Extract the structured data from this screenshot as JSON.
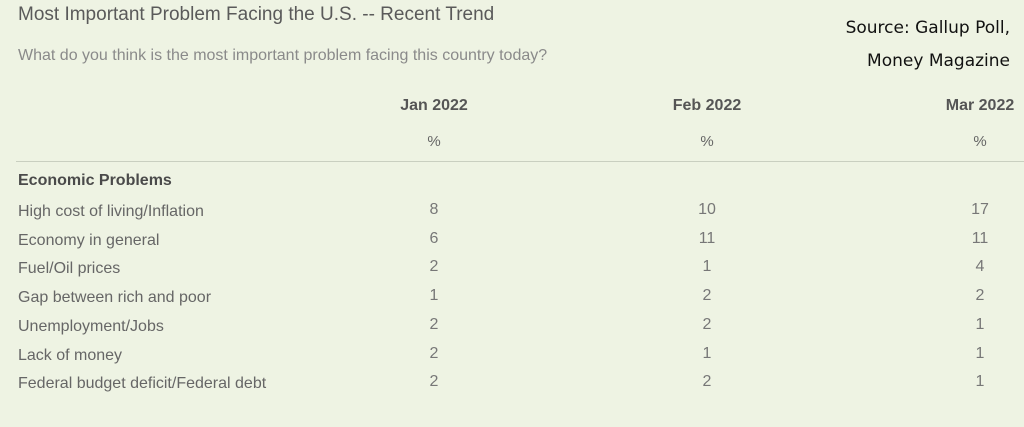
{
  "header": {
    "title": "Most Important Problem Facing the U.S. -- Recent Trend",
    "subtitle": "What do you think is the most important problem facing this country today?",
    "source_line1": "Source: Gallup Poll,",
    "source_line2": "Money Magazine"
  },
  "chart_data": {
    "type": "table",
    "columns": [
      "Jan 2022",
      "Feb 2022",
      "Mar 2022"
    ],
    "unit_row": [
      "%",
      "%",
      "%"
    ],
    "section": "Economic Problems",
    "rows": [
      {
        "label": "High cost of living/Inflation",
        "values": [
          8,
          10,
          17
        ]
      },
      {
        "label": "Economy in general",
        "values": [
          6,
          11,
          11
        ]
      },
      {
        "label": "Fuel/Oil prices",
        "values": [
          2,
          1,
          4
        ]
      },
      {
        "label": "Gap between rich and poor",
        "values": [
          1,
          2,
          2
        ]
      },
      {
        "label": "Unemployment/Jobs",
        "values": [
          2,
          2,
          1
        ]
      },
      {
        "label": "Lack of money",
        "values": [
          2,
          1,
          1
        ]
      },
      {
        "label": "Federal budget deficit/Federal debt",
        "values": [
          2,
          2,
          1
        ]
      }
    ]
  }
}
